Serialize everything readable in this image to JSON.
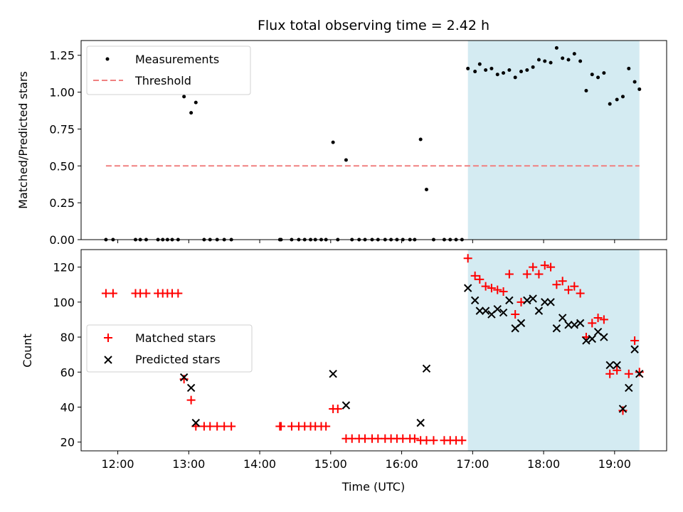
{
  "chart_data": [
    {
      "type": "scatter",
      "title": "Flux total observing time = 2.42 h",
      "xlabel": "",
      "ylabel": "Matched/Predicted stars",
      "xlim": [
        "11:29",
        "19:44"
      ],
      "ylim": [
        0,
        1.35
      ],
      "yticks": [
        "0.00",
        "0.25",
        "0.50",
        "0.75",
        "1.00",
        "1.25"
      ],
      "xticks": [
        "12:00",
        "13:00",
        "14:00",
        "15:00",
        "16:00",
        "17:00",
        "18:00",
        "19:00"
      ],
      "highlight_span": {
        "from": "16:56",
        "to": "19:21",
        "color": "#d4ebf2"
      },
      "legend": {
        "placement": "top-left",
        "entries": [
          "Measurements",
          "Threshold"
        ]
      },
      "series": [
        {
          "name": "Measurements",
          "marker": "dot",
          "color": "#000000",
          "points": [
            [
              "11:50",
              0
            ],
            [
              "11:56",
              0
            ],
            [
              "12:15",
              0
            ],
            [
              "12:19",
              0
            ],
            [
              "12:24",
              0
            ],
            [
              "12:34",
              0
            ],
            [
              "12:38",
              0
            ],
            [
              "12:42",
              0
            ],
            [
              "12:46",
              0
            ],
            [
              "12:51",
              0
            ],
            [
              "12:56",
              0.97
            ],
            [
              "13:02",
              0.86
            ],
            [
              "13:06",
              0.93
            ],
            [
              "13:13",
              0
            ],
            [
              "13:18",
              0
            ],
            [
              "13:24",
              0
            ],
            [
              "13:30",
              0
            ],
            [
              "13:36",
              0
            ],
            [
              "14:17",
              0
            ],
            [
              "14:18",
              0
            ],
            [
              "14:27",
              0
            ],
            [
              "14:33",
              0
            ],
            [
              "14:38",
              0
            ],
            [
              "14:43",
              0
            ],
            [
              "14:47",
              0
            ],
            [
              "14:52",
              0
            ],
            [
              "14:56",
              0
            ],
            [
              "15:02",
              0.66
            ],
            [
              "15:06",
              0
            ],
            [
              "15:13",
              0.54
            ],
            [
              "15:18",
              0
            ],
            [
              "15:24",
              0
            ],
            [
              "15:29",
              0
            ],
            [
              "15:35",
              0
            ],
            [
              "15:40",
              0
            ],
            [
              "15:46",
              0
            ],
            [
              "15:51",
              0
            ],
            [
              "15:56",
              0
            ],
            [
              "16:01",
              0
            ],
            [
              "16:07",
              0
            ],
            [
              "16:11",
              0
            ],
            [
              "16:16",
              0.68
            ],
            [
              "16:21",
              0.34
            ],
            [
              "16:27",
              0
            ],
            [
              "16:36",
              0
            ],
            [
              "16:41",
              0
            ],
            [
              "16:46",
              0
            ],
            [
              "16:51",
              0
            ],
            [
              "16:56",
              1.16
            ],
            [
              "17:02",
              1.14
            ],
            [
              "17:06",
              1.19
            ],
            [
              "17:11",
              1.15
            ],
            [
              "17:16",
              1.16
            ],
            [
              "17:21",
              1.12
            ],
            [
              "17:26",
              1.13
            ],
            [
              "17:31",
              1.15
            ],
            [
              "17:36",
              1.1
            ],
            [
              "17:41",
              1.14
            ],
            [
              "17:46",
              1.15
            ],
            [
              "17:51",
              1.17
            ],
            [
              "17:56",
              1.22
            ],
            [
              "18:01",
              1.21
            ],
            [
              "18:06",
              1.2
            ],
            [
              "18:11",
              1.3
            ],
            [
              "18:16",
              1.23
            ],
            [
              "18:21",
              1.22
            ],
            [
              "18:26",
              1.26
            ],
            [
              "18:31",
              1.21
            ],
            [
              "18:36",
              1.01
            ],
            [
              "18:41",
              1.12
            ],
            [
              "18:46",
              1.1
            ],
            [
              "18:51",
              1.13
            ],
            [
              "18:56",
              0.92
            ],
            [
              "19:02",
              0.95
            ],
            [
              "19:07",
              0.97
            ],
            [
              "19:12",
              1.16
            ],
            [
              "19:17",
              1.07
            ],
            [
              "19:21",
              1.02
            ]
          ]
        },
        {
          "name": "Threshold",
          "type": "line",
          "style": "dashed",
          "color": "#f08080",
          "points": [
            [
              "11:50",
              0.5
            ],
            [
              "19:21",
              0.5
            ]
          ]
        }
      ]
    },
    {
      "type": "scatter",
      "title": "",
      "xlabel": "Time (UTC)",
      "ylabel": "Count",
      "xlim": [
        "11:29",
        "19:44"
      ],
      "ylim": [
        15,
        130
      ],
      "yticks": [
        "20",
        "40",
        "60",
        "80",
        "100",
        "120"
      ],
      "xticks": [
        "12:00",
        "13:00",
        "14:00",
        "15:00",
        "16:00",
        "17:00",
        "18:00",
        "19:00"
      ],
      "highlight_span": {
        "from": "16:56",
        "to": "19:21",
        "color": "#d4ebf2"
      },
      "legend": {
        "placement": "center-left",
        "entries": [
          "Matched stars",
          "Predicted stars"
        ]
      },
      "series": [
        {
          "name": "Matched stars",
          "marker": "plus",
          "color": "#ff0000",
          "points": [
            [
              "11:50",
              105
            ],
            [
              "11:56",
              105
            ],
            [
              "12:15",
              105
            ],
            [
              "12:19",
              105
            ],
            [
              "12:24",
              105
            ],
            [
              "12:34",
              105
            ],
            [
              "12:38",
              105
            ],
            [
              "12:42",
              105
            ],
            [
              "12:46",
              105
            ],
            [
              "12:51",
              105
            ],
            [
              "12:56",
              56
            ],
            [
              "13:02",
              44
            ],
            [
              "13:06",
              29
            ],
            [
              "13:13",
              29
            ],
            [
              "13:18",
              29
            ],
            [
              "13:24",
              29
            ],
            [
              "13:30",
              29
            ],
            [
              "13:36",
              29
            ],
            [
              "14:17",
              29
            ],
            [
              "14:18",
              29
            ],
            [
              "14:27",
              29
            ],
            [
              "14:33",
              29
            ],
            [
              "14:38",
              29
            ],
            [
              "14:43",
              29
            ],
            [
              "14:47",
              29
            ],
            [
              "14:52",
              29
            ],
            [
              "14:56",
              29
            ],
            [
              "15:02",
              39
            ],
            [
              "15:06",
              39
            ],
            [
              "15:13",
              22
            ],
            [
              "15:18",
              22
            ],
            [
              "15:24",
              22
            ],
            [
              "15:29",
              22
            ],
            [
              "15:35",
              22
            ],
            [
              "15:40",
              22
            ],
            [
              "15:46",
              22
            ],
            [
              "15:51",
              22
            ],
            [
              "15:56",
              22
            ],
            [
              "16:01",
              22
            ],
            [
              "16:07",
              22
            ],
            [
              "16:11",
              22
            ],
            [
              "16:16",
              21
            ],
            [
              "16:21",
              21
            ],
            [
              "16:27",
              21
            ],
            [
              "16:36",
              21
            ],
            [
              "16:41",
              21
            ],
            [
              "16:46",
              21
            ],
            [
              "16:51",
              21
            ],
            [
              "16:56",
              125
            ],
            [
              "17:02",
              115
            ],
            [
              "17:06",
              113
            ],
            [
              "17:11",
              109
            ],
            [
              "17:16",
              108
            ],
            [
              "17:21",
              107
            ],
            [
              "17:26",
              106
            ],
            [
              "17:31",
              116
            ],
            [
              "17:36",
              93
            ],
            [
              "17:41",
              100
            ],
            [
              "17:46",
              116
            ],
            [
              "17:51",
              120
            ],
            [
              "17:56",
              116
            ],
            [
              "18:01",
              121
            ],
            [
              "18:06",
              120
            ],
            [
              "18:11",
              110
            ],
            [
              "18:16",
              112
            ],
            [
              "18:21",
              107
            ],
            [
              "18:26",
              109
            ],
            [
              "18:31",
              105
            ],
            [
              "18:36",
              80
            ],
            [
              "18:41",
              88
            ],
            [
              "18:46",
              91
            ],
            [
              "18:51",
              90
            ],
            [
              "18:56",
              59
            ],
            [
              "19:02",
              61
            ],
            [
              "19:07",
              38
            ],
            [
              "19:12",
              59
            ],
            [
              "19:17",
              78
            ],
            [
              "19:21",
              60
            ]
          ]
        },
        {
          "name": "Predicted stars",
          "marker": "x",
          "color": "#000000",
          "points": [
            [
              "12:56",
              57
            ],
            [
              "13:02",
              51
            ],
            [
              "13:06",
              31
            ],
            [
              "15:02",
              59
            ],
            [
              "15:13",
              41
            ],
            [
              "16:16",
              31
            ],
            [
              "16:21",
              62
            ],
            [
              "16:56",
              108
            ],
            [
              "17:02",
              101
            ],
            [
              "17:06",
              95
            ],
            [
              "17:11",
              95
            ],
            [
              "17:16",
              93
            ],
            [
              "17:21",
              96
            ],
            [
              "17:26",
              94
            ],
            [
              "17:31",
              101
            ],
            [
              "17:36",
              85
            ],
            [
              "17:41",
              88
            ],
            [
              "17:46",
              101
            ],
            [
              "17:51",
              102
            ],
            [
              "17:56",
              95
            ],
            [
              "18:01",
              100
            ],
            [
              "18:06",
              100
            ],
            [
              "18:11",
              85
            ],
            [
              "18:16",
              91
            ],
            [
              "18:21",
              87
            ],
            [
              "18:26",
              87
            ],
            [
              "18:31",
              88
            ],
            [
              "18:36",
              78
            ],
            [
              "18:41",
              79
            ],
            [
              "18:46",
              83
            ],
            [
              "18:51",
              80
            ],
            [
              "18:56",
              64
            ],
            [
              "19:02",
              64
            ],
            [
              "19:07",
              39
            ],
            [
              "19:12",
              51
            ],
            [
              "19:17",
              73
            ],
            [
              "19:21",
              59
            ]
          ]
        }
      ]
    }
  ]
}
